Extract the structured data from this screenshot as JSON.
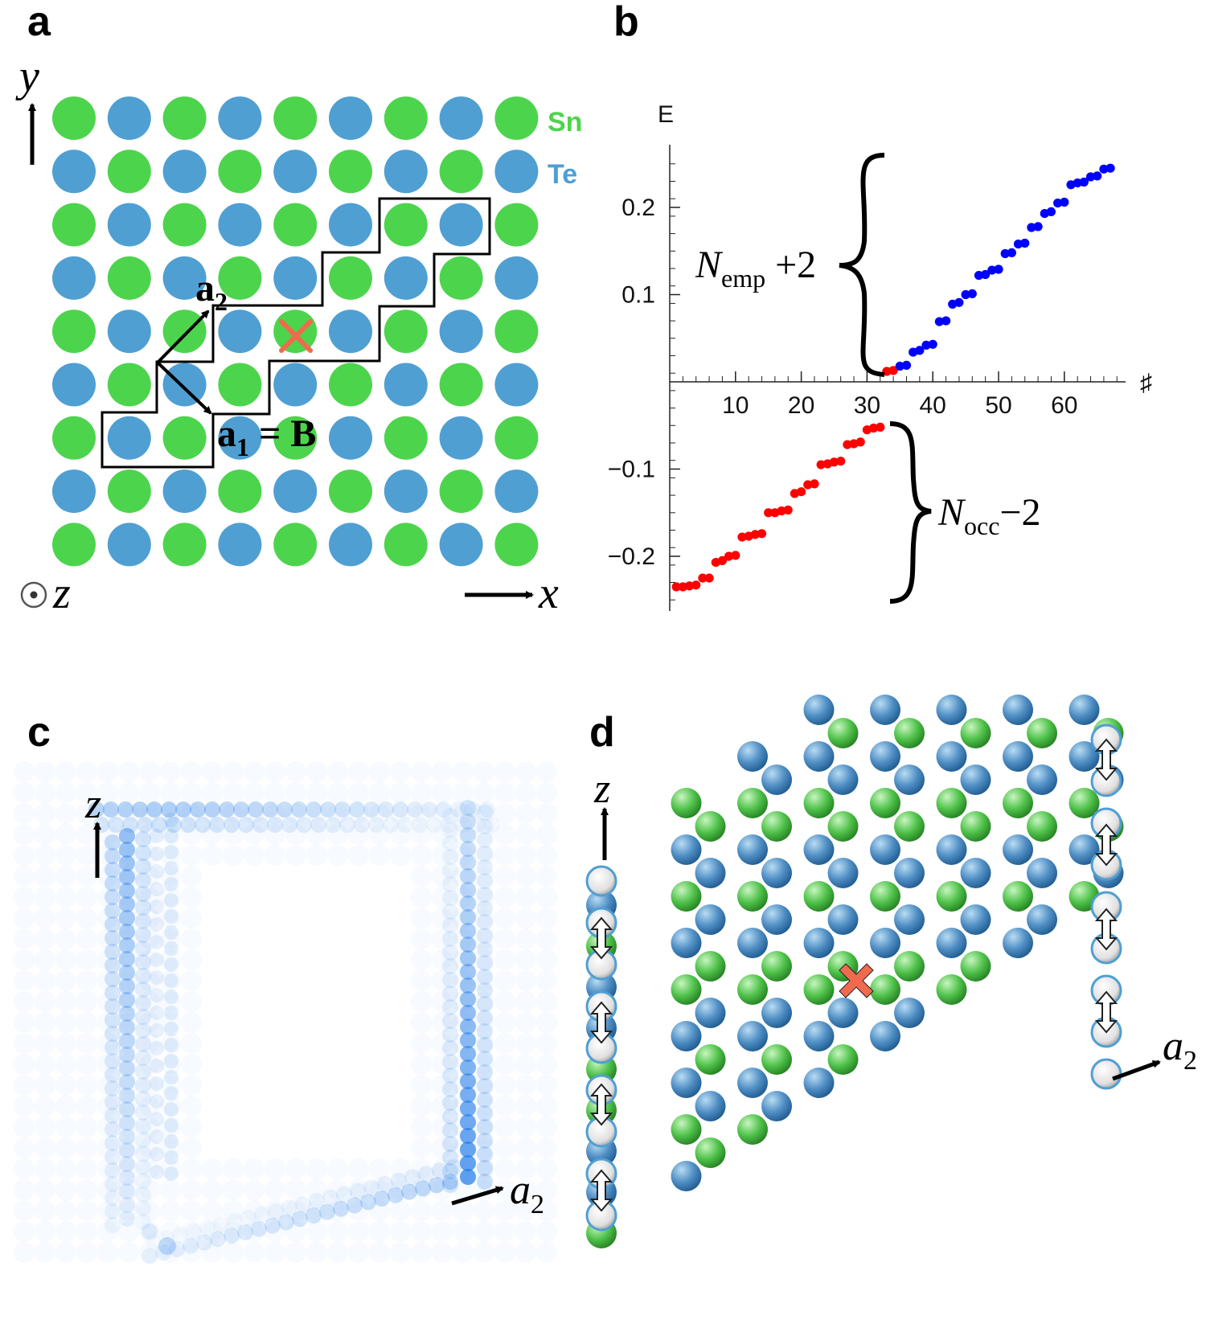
{
  "panels": {
    "a": {
      "label": "a",
      "y_axis": "y",
      "x_axis": "x",
      "z_axis": "z",
      "species_1": "Sn",
      "species_2": "Te",
      "vec_a2_main": "a",
      "vec_a2_sub": "2",
      "vec_a1_main": "a",
      "vec_a1_sub": "1",
      "vec_a1_eq": " = B",
      "colors": {
        "Sn": "#4dd44d",
        "Te": "#4f9fd2",
        "defect": "#f06b4e"
      }
    },
    "b": {
      "label": "b",
      "annot_emp_main": "N",
      "annot_emp_sub": "emp",
      "annot_emp_rest": " +2",
      "annot_occ_main": "N",
      "annot_occ_sub": "occ",
      "annot_occ_rest": "−2"
    },
    "c": {
      "label": "c",
      "z_axis": "z",
      "a2_main": "a",
      "a2_sub": "2"
    },
    "d": {
      "label": "d",
      "z_axis": "z",
      "a2_main": "a",
      "a2_sub": "2"
    }
  },
  "chart_data": {
    "type": "scatter",
    "ylabel": "E",
    "xlabel": "♯",
    "xlim": [
      0,
      68
    ],
    "ylim": [
      -0.26,
      0.27
    ],
    "xticks": [
      10,
      20,
      30,
      40,
      50,
      60
    ],
    "yticks": [
      0.2,
      0.1,
      -0.1,
      -0.2
    ],
    "ytick_labels": [
      "0.2",
      "0.1",
      "−0.1",
      "−0.2"
    ],
    "series": [
      {
        "color": "#ff0000",
        "x": [
          1,
          2,
          3,
          4,
          5,
          6,
          7,
          8,
          9,
          10,
          11,
          12,
          13,
          14,
          15,
          16,
          17,
          18,
          19,
          20,
          21,
          22,
          23,
          24,
          25,
          26,
          27,
          28,
          29,
          30,
          31,
          32,
          33,
          34
        ],
        "y": [
          -0.235,
          -0.235,
          -0.234,
          -0.233,
          -0.225,
          -0.225,
          -0.207,
          -0.205,
          -0.2,
          -0.199,
          -0.178,
          -0.177,
          -0.175,
          -0.174,
          -0.15,
          -0.15,
          -0.148,
          -0.147,
          -0.128,
          -0.126,
          -0.118,
          -0.117,
          -0.095,
          -0.094,
          -0.092,
          -0.091,
          -0.072,
          -0.071,
          -0.069,
          -0.055,
          -0.053,
          -0.052,
          0.012,
          0.013
        ]
      },
      {
        "color": "#0000ff",
        "x": [
          35,
          36,
          37,
          38,
          39,
          40,
          41,
          42,
          43,
          44,
          45,
          46,
          47,
          48,
          49,
          50,
          51,
          52,
          53,
          54,
          55,
          56,
          57,
          58,
          59,
          60,
          61,
          62,
          63,
          64,
          65,
          66,
          67
        ],
        "y": [
          0.018,
          0.019,
          0.034,
          0.036,
          0.042,
          0.043,
          0.069,
          0.07,
          0.089,
          0.091,
          0.1,
          0.101,
          0.122,
          0.123,
          0.128,
          0.129,
          0.147,
          0.148,
          0.158,
          0.159,
          0.177,
          0.178,
          0.193,
          0.195,
          0.205,
          0.206,
          0.226,
          0.228,
          0.229,
          0.235,
          0.236,
          0.244,
          0.245
        ]
      }
    ]
  }
}
